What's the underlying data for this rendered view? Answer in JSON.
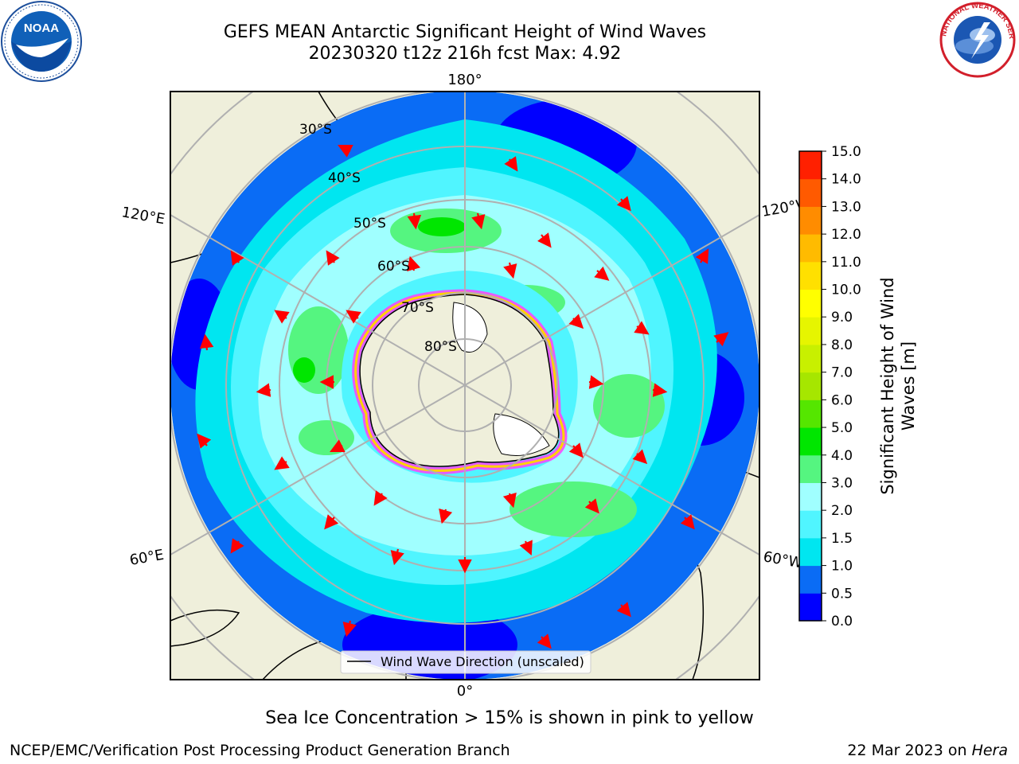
{
  "title_line1": "GEFS MEAN Antarctic Significant Height of Wind Waves",
  "title_line2": "20230320 t12z 216h fcst   Max: 4.92",
  "noaa_logo_text": "NOAA",
  "nws_logo_text": "NATIONAL WEATHER SERVICE",
  "meridian_labels": {
    "top": "180°",
    "bottom": "0°",
    "upper_left": "120°E",
    "upper_right": "120°W",
    "lower_left": "60°E",
    "lower_right": "60°W"
  },
  "latitude_labels": [
    "30°S",
    "40°S",
    "50°S",
    "60°S",
    "70°S",
    "80°S"
  ],
  "legend_label": "Wind Wave Direction (unscaled)",
  "colorbar": {
    "label": "Significant Height of Wind Waves [m]",
    "ticks": [
      "0.0",
      "0.5",
      "1.0",
      "1.5",
      "2.0",
      "3.0",
      "4.0",
      "5.0",
      "6.0",
      "7.0",
      "8.0",
      "9.0",
      "10.0",
      "11.0",
      "12.0",
      "13.0",
      "14.0",
      "15.0"
    ],
    "colors": [
      "#0000ff",
      "#0a6cf5",
      "#00e6f0",
      "#50f5ff",
      "#a0ffff",
      "#55f580",
      "#00e600",
      "#55e600",
      "#a6e600",
      "#c8f000",
      "#e6f500",
      "#ffff00",
      "#ffe000",
      "#ffbb00",
      "#ff8c00",
      "#ff5a00",
      "#ff2000"
    ]
  },
  "sea_ice_note": "Sea Ice Concentration > 15% is shown in pink to yellow",
  "footer_left": "NCEP/EMC/Verification Post Processing Product Generation Branch",
  "footer_right_date": "22 Mar 2023 on ",
  "footer_right_machine": "Hera"
}
